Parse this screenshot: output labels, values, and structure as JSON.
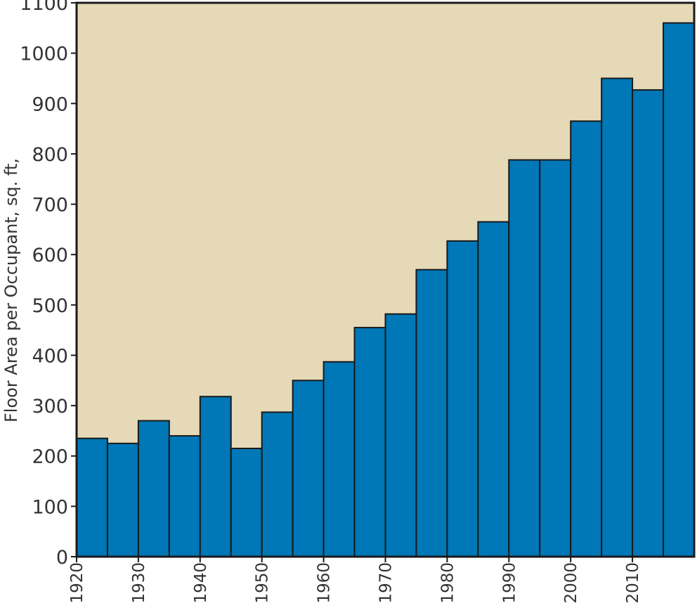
{
  "colors": {
    "plot_background": "#e6d9b8",
    "bar_fill": "#0077b6",
    "bar_stroke": "#1a1a1a",
    "frame": "#1a1a1a"
  },
  "chart_data": {
    "type": "bar",
    "title": "",
    "xlabel": "",
    "ylabel": "Floor Area per Occupant, sq. ft,",
    "ylim": [
      0,
      1100
    ],
    "xlim": [
      1920,
      2020
    ],
    "grid": false,
    "legend": "none",
    "y_ticks": [
      0,
      100,
      200,
      300,
      400,
      500,
      600,
      700,
      800,
      900,
      1000,
      1100
    ],
    "x_ticks": [
      1920,
      1930,
      1940,
      1950,
      1960,
      1970,
      1980,
      1990,
      2000,
      2010
    ],
    "bin_width_years": 5,
    "categories": [
      "1920",
      "1925",
      "1930",
      "1935",
      "1940",
      "1945",
      "1950",
      "1955",
      "1960",
      "1965",
      "1970",
      "1975",
      "1980",
      "1985",
      "1990",
      "1995",
      "2000",
      "2005",
      "2010",
      "2015"
    ],
    "values": [
      235,
      225,
      270,
      240,
      318,
      215,
      287,
      350,
      387,
      455,
      482,
      570,
      627,
      665,
      788,
      788,
      865,
      950,
      927,
      1060
    ]
  }
}
